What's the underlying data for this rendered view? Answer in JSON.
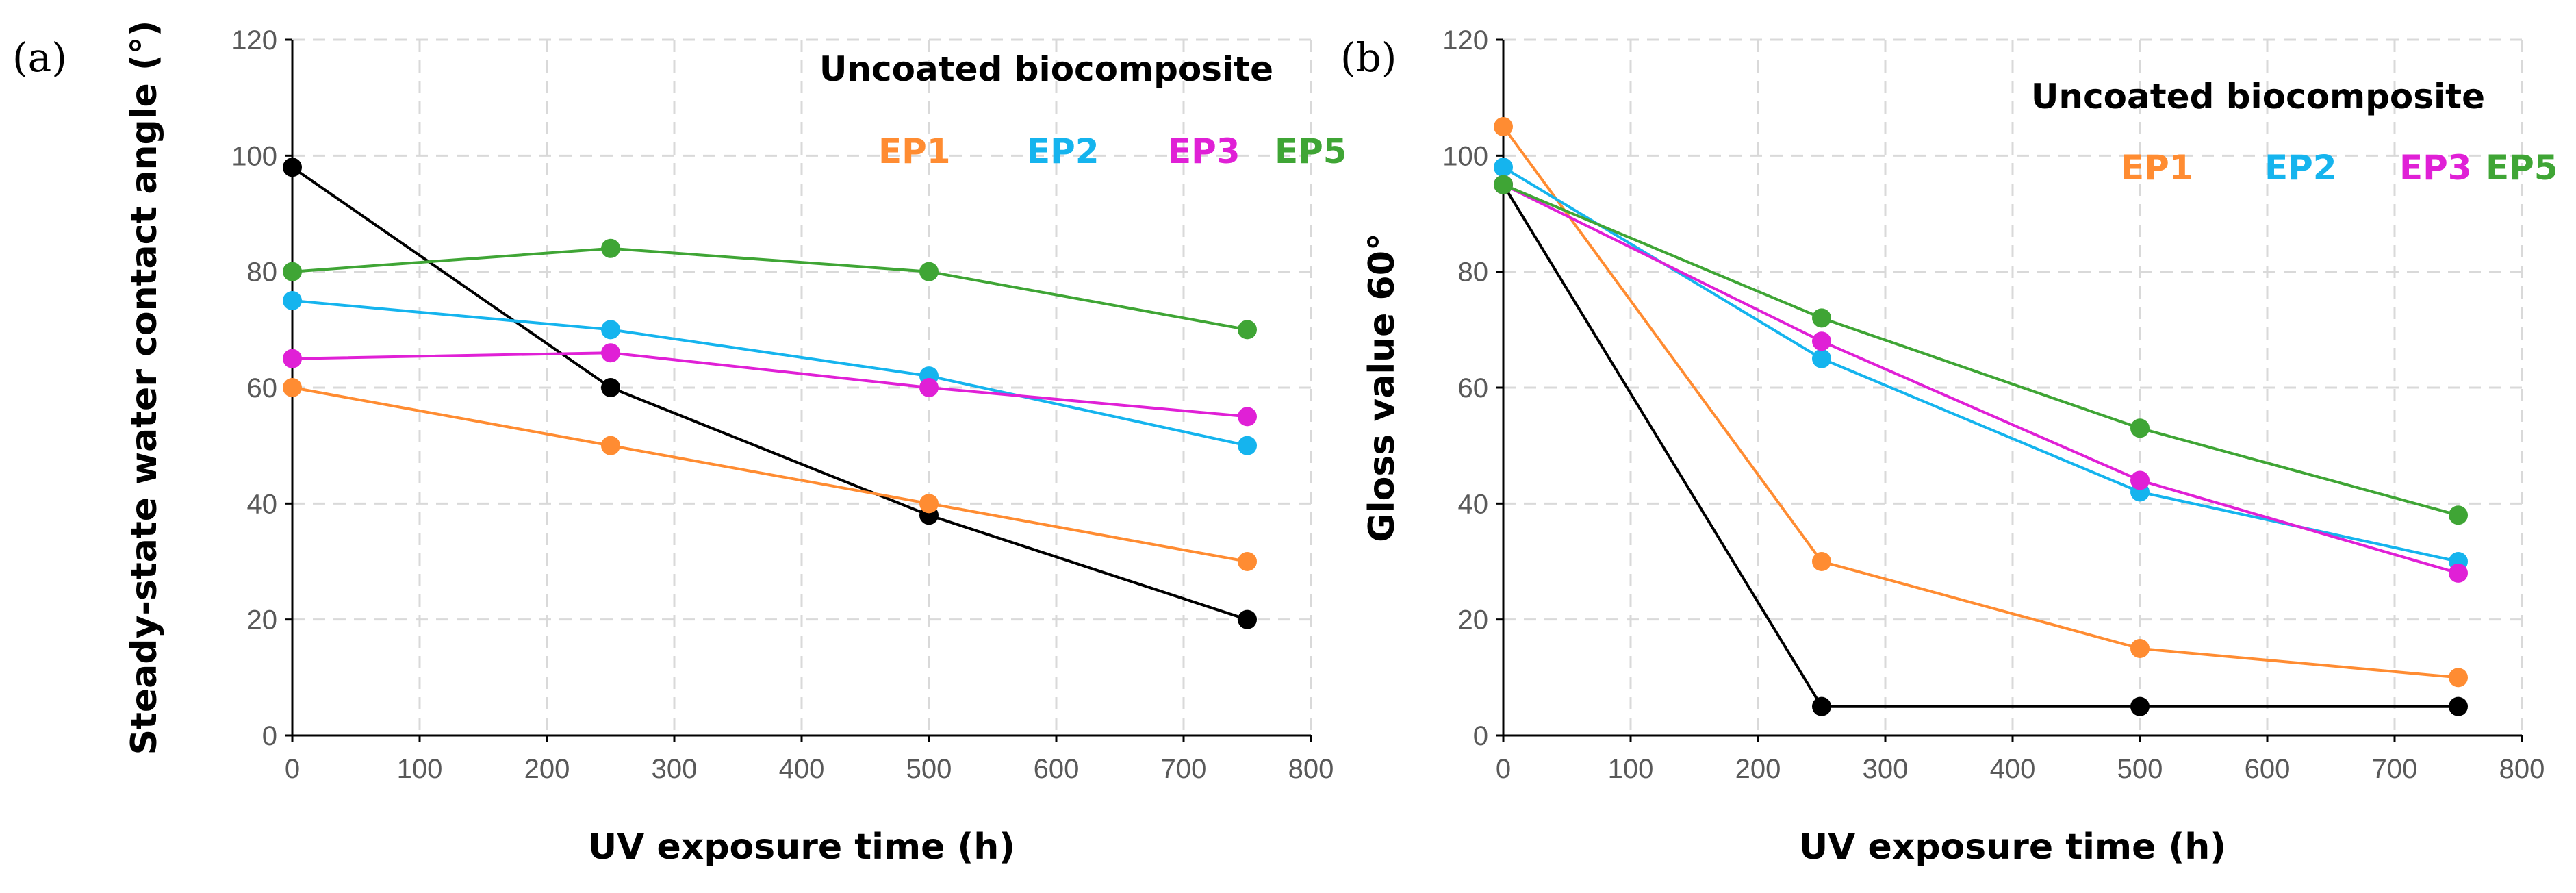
{
  "colors": {
    "Uncoated biocomposite": "#000000",
    "EP1": "#ff8c32",
    "EP2": "#15b4ee",
    "EP3": "#e020d6",
    "EP5": "#3fa535",
    "grid": "#d9d9d9",
    "tick": "#595959"
  },
  "chart_data": [
    {
      "type": "line",
      "panel_label": "(a)",
      "title": "",
      "xlabel": "UV exposure time (h)",
      "ylabel": "Steady-state water contact angle (°)",
      "xlim": [
        0,
        800
      ],
      "ylim": [
        0,
        120
      ],
      "xticks": [
        0,
        100,
        200,
        300,
        400,
        500,
        600,
        700,
        800
      ],
      "yticks": [
        0,
        20,
        40,
        60,
        80,
        100,
        120
      ],
      "grid": true,
      "legend_position": "top-right",
      "legend_title": "Uncoated biocomposite",
      "x": [
        0,
        250,
        500,
        750
      ],
      "series": [
        {
          "name": "Uncoated biocomposite",
          "values": [
            98,
            60,
            38,
            20
          ]
        },
        {
          "name": "EP1",
          "values": [
            60,
            50,
            40,
            30
          ]
        },
        {
          "name": "EP2",
          "values": [
            75,
            70,
            62,
            50
          ]
        },
        {
          "name": "EP3",
          "values": [
            65,
            66,
            60,
            55
          ]
        },
        {
          "name": "EP5",
          "values": [
            80,
            84,
            80,
            70
          ]
        }
      ]
    },
    {
      "type": "line",
      "panel_label": "(b)",
      "title": "",
      "xlabel": "UV exposure time (h)",
      "ylabel": "Gloss value 60°",
      "xlim": [
        0,
        800
      ],
      "ylim": [
        0,
        120
      ],
      "xticks": [
        0,
        100,
        200,
        300,
        400,
        500,
        600,
        700,
        800
      ],
      "yticks": [
        0,
        20,
        40,
        60,
        80,
        100,
        120
      ],
      "grid": true,
      "legend_position": "top-right",
      "legend_title": "Uncoated biocomposite",
      "x": [
        0,
        250,
        500,
        750
      ],
      "series": [
        {
          "name": "Uncoated biocomposite",
          "values": [
            95,
            5,
            5,
            5
          ]
        },
        {
          "name": "EP1",
          "values": [
            105,
            30,
            15,
            10
          ]
        },
        {
          "name": "EP2",
          "values": [
            98,
            65,
            42,
            30
          ]
        },
        {
          "name": "EP3",
          "values": [
            95,
            68,
            44,
            28
          ]
        },
        {
          "name": "EP5",
          "values": [
            95,
            72,
            53,
            38
          ]
        }
      ]
    }
  ]
}
